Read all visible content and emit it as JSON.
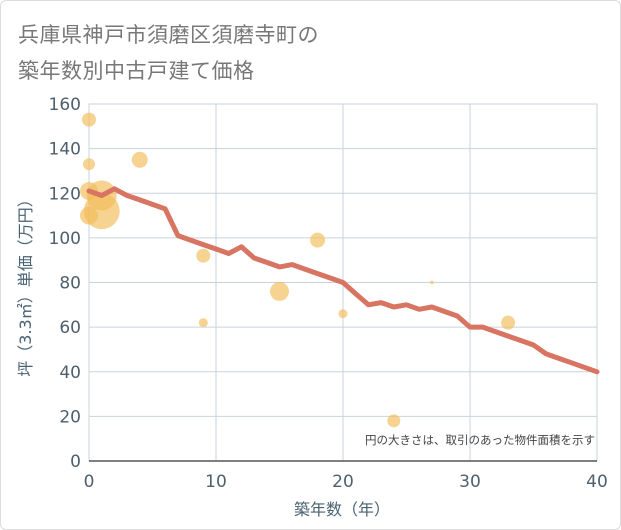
{
  "title_lines": [
    "兵庫県神戸市須磨区須磨寺町の",
    "築年数別中古戸建て価格"
  ],
  "colors": {
    "line": "#d87462",
    "bubble": "#f3bc57",
    "grid": "#c9d3dc",
    "axis_text": "#4e5f6d"
  },
  "chart_data": {
    "type": "scatter",
    "xlabel": "築年数（年）",
    "ylabel": "坪（3.3㎡）単価（万円）",
    "xlim": [
      0,
      40
    ],
    "ylim": [
      0,
      160
    ],
    "xticks": [
      0,
      10,
      20,
      30,
      40
    ],
    "yticks": [
      0,
      20,
      40,
      60,
      80,
      100,
      120,
      140,
      160
    ],
    "grid": true,
    "note": "円の大きさは、取引のあった物件面積を示す",
    "points": [
      {
        "x": 0,
        "y": 153,
        "size": 7
      },
      {
        "x": 0,
        "y": 133,
        "size": 6
      },
      {
        "x": 0,
        "y": 121,
        "size": 9
      },
      {
        "x": 0,
        "y": 110,
        "size": 9
      },
      {
        "x": 1,
        "y": 119,
        "size": 15
      },
      {
        "x": 1,
        "y": 112,
        "size": 18
      },
      {
        "x": 4,
        "y": 135,
        "size": 8
      },
      {
        "x": 9,
        "y": 92,
        "size": 7
      },
      {
        "x": 9,
        "y": 62,
        "size": 4.5
      },
      {
        "x": 15,
        "y": 76,
        "size": 9.5
      },
      {
        "x": 18,
        "y": 99,
        "size": 7.5
      },
      {
        "x": 20,
        "y": 66,
        "size": 4.5
      },
      {
        "x": 24,
        "y": 18,
        "size": 6.5
      },
      {
        "x": 27,
        "y": 80,
        "size": 1.8
      },
      {
        "x": 33,
        "y": 62,
        "size": 7
      }
    ],
    "trend": {
      "name": "",
      "x": [
        0,
        1,
        2,
        3,
        4,
        5,
        6,
        7,
        8,
        9,
        10,
        11,
        12,
        13,
        14,
        15,
        16,
        17,
        18,
        19,
        20,
        21,
        22,
        23,
        24,
        25,
        26,
        27,
        28,
        29,
        30,
        31,
        32,
        33,
        34,
        35,
        36,
        37,
        38,
        39,
        40
      ],
      "y": [
        121,
        119,
        122,
        119,
        117,
        115,
        113,
        101,
        99,
        97,
        95,
        93,
        96,
        91,
        89,
        87,
        88,
        86,
        84,
        82,
        80,
        75,
        70,
        71,
        69,
        70,
        68,
        69,
        67,
        65,
        60,
        60,
        58,
        56,
        54,
        52,
        48,
        46,
        44,
        42,
        40
      ]
    }
  }
}
